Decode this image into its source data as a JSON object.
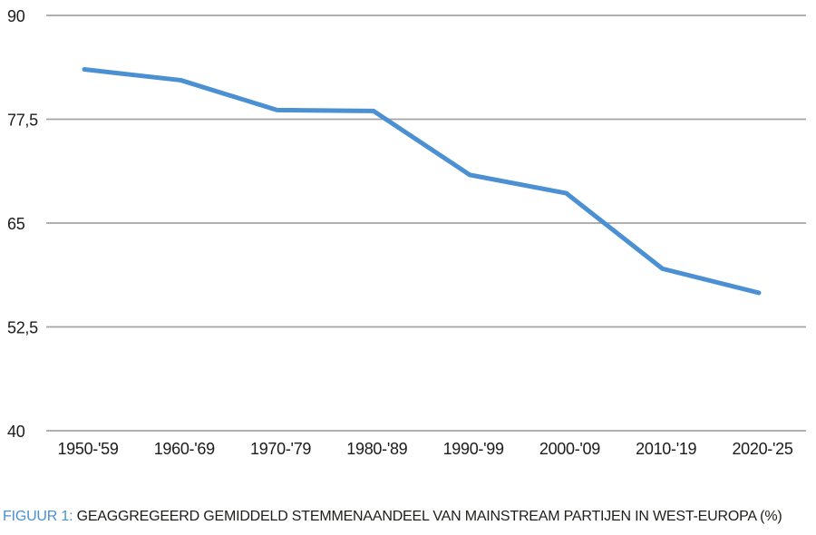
{
  "chart_data": {
    "type": "line",
    "title": "",
    "xlabel": "",
    "ylabel": "",
    "categories": [
      "1950-'59",
      "1960-'69",
      "1970-'79",
      "1980-'89",
      "1990-'99",
      "2000-'09",
      "2010-'19",
      "2020-'25"
    ],
    "values": [
      83.5,
      82.2,
      78.6,
      78.5,
      70.8,
      68.6,
      59.5,
      56.6
    ],
    "series_name": "Geaggregeerd gemiddeld stemmenaandeel mainstream partijen",
    "ylim": [
      40,
      90
    ],
    "yticks": [
      {
        "value": 90,
        "label": "90"
      },
      {
        "value": 77.5,
        "label": "77,5"
      },
      {
        "value": 65,
        "label": "65"
      },
      {
        "value": 52.5,
        "label": "52,5"
      },
      {
        "value": 40,
        "label": "40"
      }
    ],
    "grid": true,
    "legend": false,
    "decimal_separator": ",",
    "colors": {
      "line": "#4a90d2",
      "grid": "#a4a4a4",
      "text": "#1c1c1c"
    }
  },
  "caption": {
    "prefix": "FIGUUR 1:",
    "text": "GEAGGREGEERD GEMIDDELD STEMMENAANDEEL VAN MAINSTREAM PARTIJEN IN WEST-EUROPA (%)",
    "prefix_color": "#4a90d2",
    "text_color": "#1d1d1b"
  }
}
